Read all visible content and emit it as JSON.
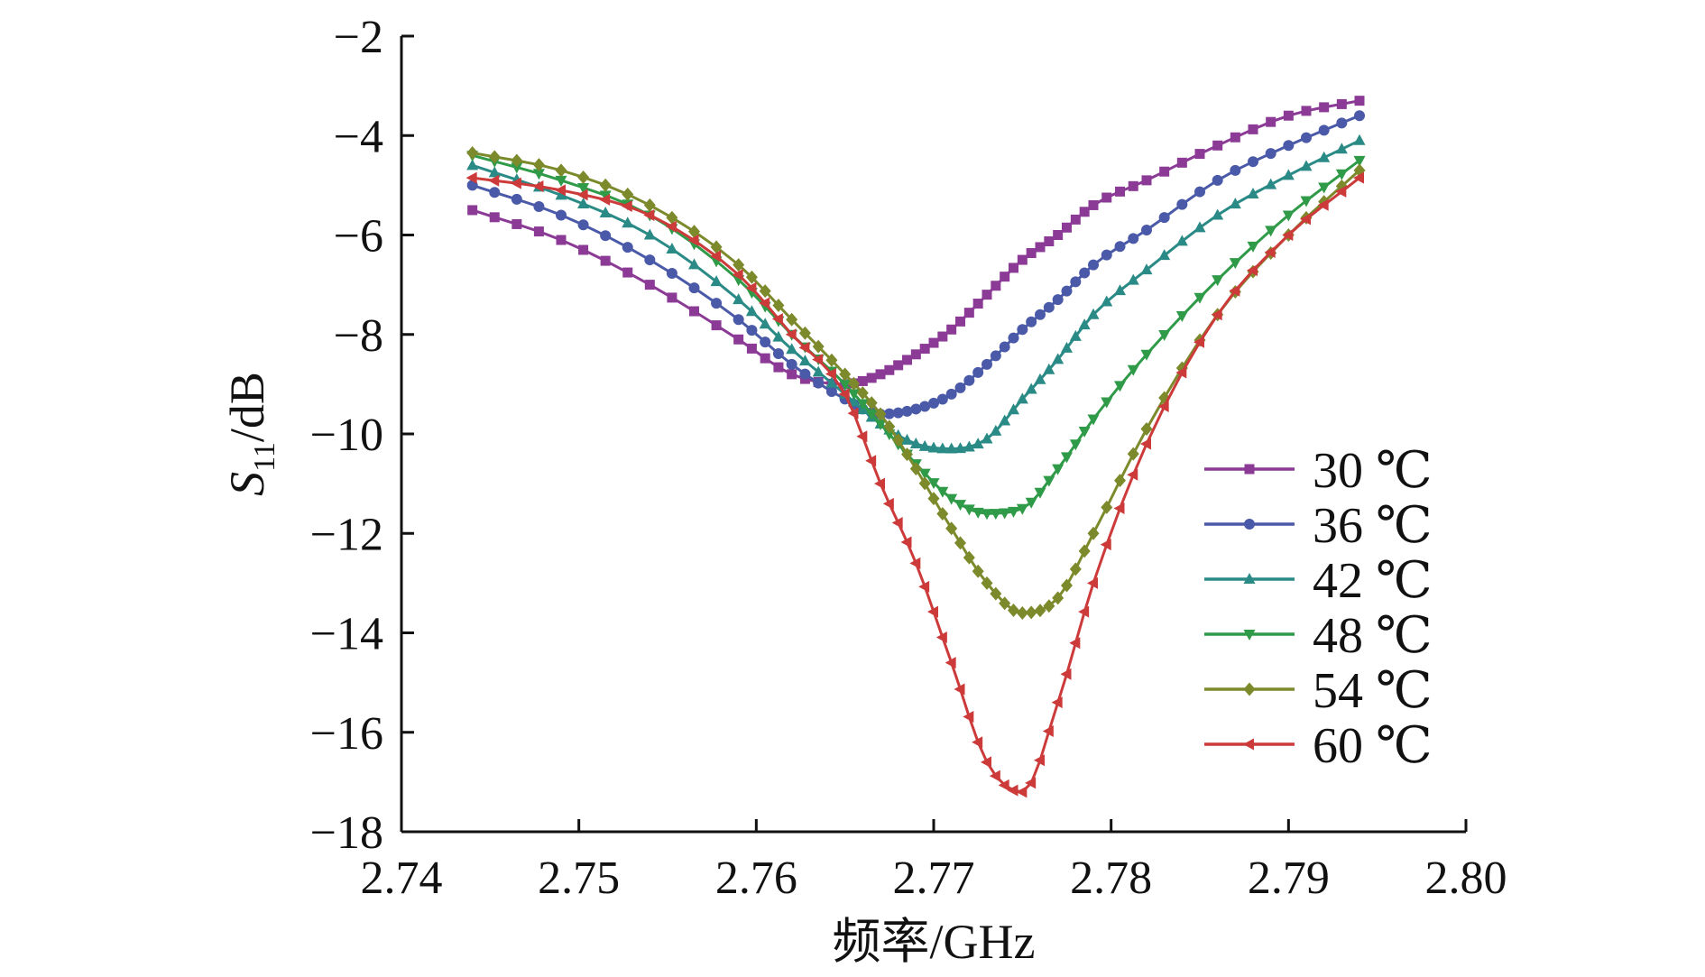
{
  "chart_data": {
    "type": "line",
    "xlabel": "频率/GHz",
    "ylabel_main": "S",
    "ylabel_sub": "11",
    "ylabel_unit": "/dB",
    "xlim": [
      2.74,
      2.8
    ],
    "ylim": [
      -18,
      -2
    ],
    "x_ticks": [
      2.74,
      2.75,
      2.76,
      2.77,
      2.78,
      2.79,
      2.8
    ],
    "x_tick_labels": [
      "2.74",
      "2.75",
      "2.76",
      "2.77",
      "2.78",
      "2.79",
      "2.80"
    ],
    "y_ticks": [
      -2,
      -4,
      -6,
      -8,
      -10,
      -12,
      -14,
      -16,
      -18
    ],
    "y_tick_labels": [
      "−2",
      "−4",
      "−6",
      "−8",
      "−10",
      "−12",
      "−14",
      "−16",
      "−18"
    ],
    "grid": false,
    "legend_position": "right",
    "x": [
      2.744,
      2.749,
      2.754,
      2.759,
      2.762,
      2.765,
      2.767,
      2.769,
      2.771,
      2.773,
      2.775,
      2.777,
      2.779,
      2.782,
      2.786,
      2.79,
      2.794
    ],
    "series": [
      {
        "name": "30 ℃",
        "color": "#8b3a95",
        "marker": "square",
        "values": [
          -5.5,
          -6.1,
          -7.0,
          -8.1,
          -8.8,
          -9.0,
          -8.8,
          -8.4,
          -7.9,
          -7.2,
          -6.5,
          -6.0,
          -5.4,
          -4.9,
          -4.2,
          -3.6,
          -3.3
        ]
      },
      {
        "name": "36 ℃",
        "color": "#4a5aa8",
        "marker": "circle",
        "values": [
          -5.0,
          -5.6,
          -6.5,
          -7.7,
          -8.6,
          -9.3,
          -9.6,
          -9.5,
          -9.2,
          -8.6,
          -7.9,
          -7.3,
          -6.6,
          -5.9,
          -4.9,
          -4.2,
          -3.6
        ]
      },
      {
        "name": "42 ℃",
        "color": "#2a8a86",
        "marker": "triangle-up",
        "values": [
          -4.6,
          -5.2,
          -6.0,
          -7.3,
          -8.3,
          -9.2,
          -9.8,
          -10.2,
          -10.3,
          -10.1,
          -9.3,
          -8.5,
          -7.6,
          -6.7,
          -5.6,
          -4.8,
          -4.1
        ]
      },
      {
        "name": "48 ℃",
        "color": "#2f9a48",
        "marker": "triangle-down",
        "values": [
          -4.4,
          -4.9,
          -5.6,
          -6.9,
          -8.0,
          -9.0,
          -9.8,
          -10.6,
          -11.3,
          -11.6,
          -11.5,
          -10.7,
          -9.7,
          -8.4,
          -6.9,
          -5.6,
          -4.5
        ]
      },
      {
        "name": "54 ℃",
        "color": "#7d8a2c",
        "marker": "diamond",
        "values": [
          -4.35,
          -4.7,
          -5.4,
          -6.6,
          -7.7,
          -8.8,
          -9.6,
          -10.7,
          -11.9,
          -13.0,
          -13.6,
          -13.3,
          -12.0,
          -9.9,
          -7.6,
          -6.0,
          -4.7
        ]
      },
      {
        "name": "60 ℃",
        "color": "#cc3a3a",
        "marker": "triangle-left",
        "values": [
          -4.85,
          -5.1,
          -5.6,
          -6.8,
          -8.0,
          -9.2,
          -11.0,
          -12.6,
          -14.6,
          -16.6,
          -17.2,
          -15.4,
          -13.0,
          -10.2,
          -7.6,
          -6.0,
          -4.85
        ]
      }
    ]
  }
}
